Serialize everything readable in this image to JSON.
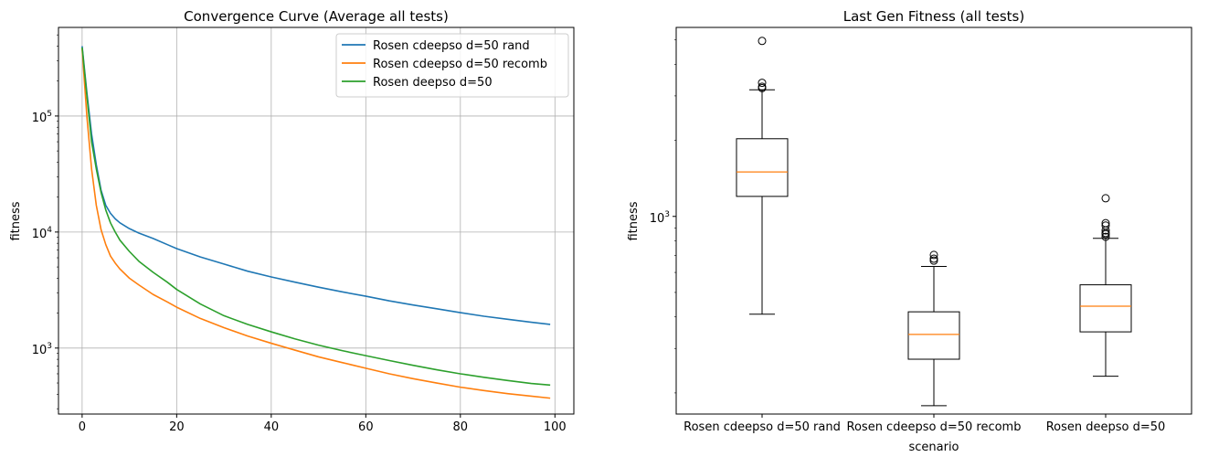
{
  "chart_data": [
    {
      "type": "line",
      "title": "Convergence Curve (Average all tests)",
      "xlabel": "",
      "ylabel": "fitness",
      "yscale": "log",
      "xlim": [
        -5,
        104
      ],
      "ylim": [
        270,
        580000
      ],
      "grid": true,
      "legend_position": "top-right",
      "x_ticks": [
        0,
        20,
        40,
        60,
        80,
        100
      ],
      "x_tick_labels": [
        "0",
        "20",
        "40",
        "60",
        "80",
        "100"
      ],
      "y_ticks": [
        1000,
        10000,
        100000
      ],
      "y_tick_labels": [
        "10",
        "10",
        "10"
      ],
      "y_tick_exponents": [
        "3",
        "4",
        "5"
      ],
      "series": [
        {
          "name": "Rosen cdeepso d=50 rand",
          "color": "#1f77b4",
          "x": [
            0,
            1,
            2,
            3,
            4,
            5,
            6,
            7,
            8,
            10,
            12,
            15,
            18,
            20,
            25,
            30,
            35,
            40,
            45,
            50,
            55,
            60,
            65,
            70,
            75,
            80,
            85,
            90,
            95,
            99
          ],
          "y": [
            400000,
            160000,
            70000,
            38000,
            23000,
            17000,
            14500,
            13000,
            12000,
            10700,
            9800,
            8800,
            7800,
            7200,
            6100,
            5300,
            4600,
            4100,
            3700,
            3350,
            3050,
            2800,
            2550,
            2350,
            2180,
            2020,
            1880,
            1770,
            1670,
            1600
          ]
        },
        {
          "name": "Rosen cdeepso d=50 recomb",
          "color": "#ff7f0e",
          "x": [
            0,
            1,
            2,
            3,
            4,
            5,
            6,
            7,
            8,
            10,
            12,
            15,
            18,
            20,
            25,
            30,
            35,
            40,
            45,
            50,
            55,
            60,
            65,
            70,
            75,
            80,
            85,
            90,
            95,
            99
          ],
          "y": [
            380000,
            100000,
            35000,
            17000,
            10500,
            7800,
            6200,
            5400,
            4800,
            4000,
            3500,
            2900,
            2500,
            2250,
            1800,
            1500,
            1270,
            1100,
            960,
            840,
            750,
            670,
            600,
            545,
            500,
            460,
            430,
            405,
            385,
            370
          ]
        },
        {
          "name": "Rosen deepso d=50",
          "color": "#2ca02c",
          "x": [
            0,
            1,
            2,
            3,
            4,
            5,
            6,
            7,
            8,
            10,
            12,
            15,
            18,
            20,
            25,
            30,
            35,
            40,
            45,
            50,
            55,
            60,
            65,
            70,
            75,
            80,
            85,
            90,
            95,
            99
          ],
          "y": [
            390000,
            150000,
            60000,
            35000,
            22000,
            15500,
            12000,
            10000,
            8500,
            6800,
            5600,
            4500,
            3700,
            3200,
            2400,
            1900,
            1600,
            1380,
            1200,
            1060,
            950,
            860,
            780,
            710,
            650,
            600,
            560,
            525,
            495,
            480
          ]
        }
      ]
    },
    {
      "type": "box",
      "title": "Last Gen Fitness (all tests)",
      "xlabel": "scenario",
      "ylabel": "fitness",
      "yscale": "log",
      "ylim": [
        165,
        5600
      ],
      "grid": false,
      "y_ticks": [
        1000
      ],
      "y_tick_labels": [
        "10"
      ],
      "y_tick_exponents": [
        "3"
      ],
      "median_color": "#ff7f0e",
      "categories": [
        "Rosen cdeepso d=50 rand",
        "Rosen cdeepso d=50 recomb",
        "Rosen deepso d=50"
      ],
      "boxes": [
        {
          "whisker_low": 410,
          "q1": 1200,
          "median": 1500,
          "q3": 2030,
          "whisker_high": 3170,
          "outliers": [
            4950,
            3380,
            3260,
            3220
          ]
        },
        {
          "whisker_low": 178,
          "q1": 272,
          "median": 341,
          "q3": 419,
          "whisker_high": 634,
          "outliers": [
            704,
            680,
            668
          ]
        },
        {
          "whisker_low": 233,
          "q1": 349,
          "median": 441,
          "q3": 536,
          "whisker_high": 819,
          "outliers": [
            1180,
            940,
            920,
            880,
            860,
            850,
            830
          ]
        }
      ]
    }
  ]
}
